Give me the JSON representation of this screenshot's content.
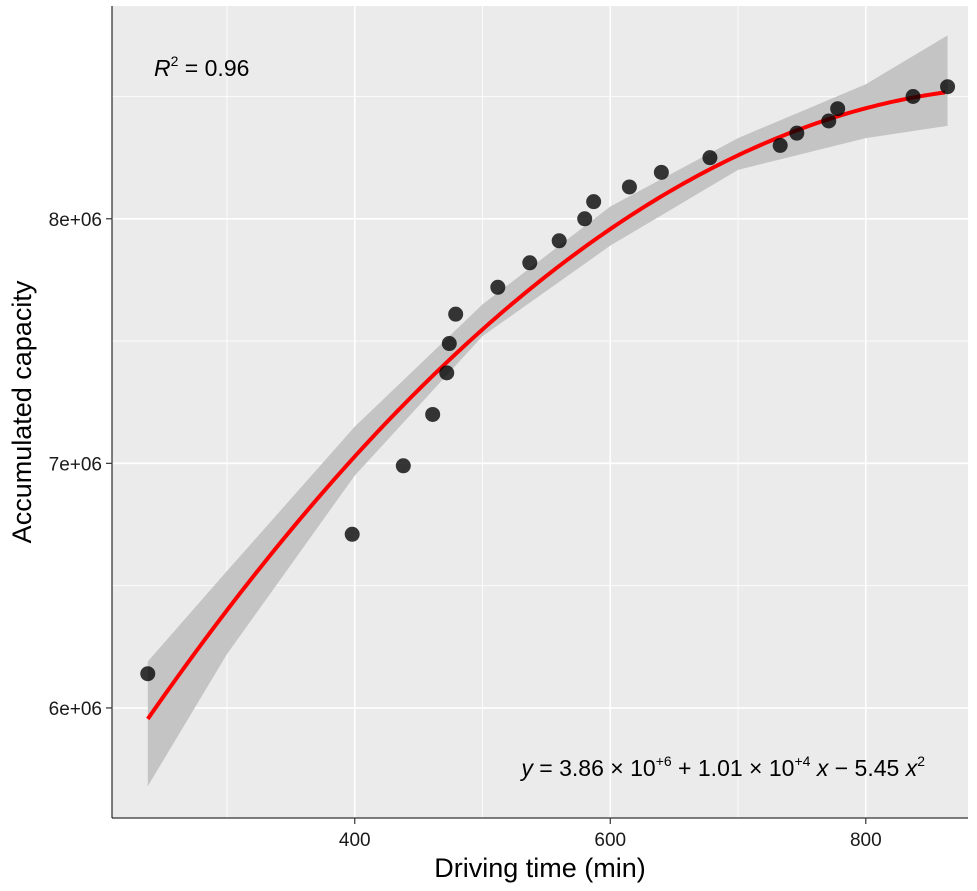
{
  "chart_data": {
    "type": "scatter",
    "xlabel": "Driving time (min)",
    "ylabel": "Accumulated capacity",
    "xlim": [
      210,
      880
    ],
    "ylim": [
      5550000,
      8870000
    ],
    "x_ticks": [
      400,
      600,
      800
    ],
    "x_tick_labels": [
      "400",
      "600",
      "800"
    ],
    "y_ticks": [
      6000000,
      7000000,
      8000000
    ],
    "y_tick_labels": [
      "6e+06",
      "7e+06",
      "8e+06"
    ],
    "grid": true,
    "points": [
      {
        "x": 238,
        "y": 6140000
      },
      {
        "x": 398,
        "y": 6710000
      },
      {
        "x": 438,
        "y": 6990000
      },
      {
        "x": 461,
        "y": 7200000
      },
      {
        "x": 472,
        "y": 7370000
      },
      {
        "x": 474,
        "y": 7490000
      },
      {
        "x": 479,
        "y": 7610000
      },
      {
        "x": 512,
        "y": 7720000
      },
      {
        "x": 537,
        "y": 7820000
      },
      {
        "x": 560,
        "y": 7910000
      },
      {
        "x": 580,
        "y": 8000000
      },
      {
        "x": 587,
        "y": 8070000
      },
      {
        "x": 615,
        "y": 8130000
      },
      {
        "x": 640,
        "y": 8190000
      },
      {
        "x": 678,
        "y": 8250000
      },
      {
        "x": 733,
        "y": 8300000
      },
      {
        "x": 746,
        "y": 8350000
      },
      {
        "x": 771,
        "y": 8400000
      },
      {
        "x": 778,
        "y": 8450000
      },
      {
        "x": 837,
        "y": 8500000
      },
      {
        "x": 864,
        "y": 8540000
      }
    ],
    "fit": {
      "color": "#ff0000",
      "intercept": 3860000,
      "linear": 10100,
      "quadratic": -5.45,
      "x_range": [
        238,
        864
      ],
      "ci_band": [
        {
          "x": 238,
          "lo": 5680000,
          "hi": 6190000
        },
        {
          "x": 300,
          "lo": 6220000,
          "hi": 6560000
        },
        {
          "x": 400,
          "lo": 6950000,
          "hi": 7150000
        },
        {
          "x": 500,
          "lo": 7520000,
          "hi": 7650000
        },
        {
          "x": 600,
          "lo": 7890000,
          "hi": 8050000
        },
        {
          "x": 700,
          "lo": 8200000,
          "hi": 8330000
        },
        {
          "x": 800,
          "lo": 8330000,
          "hi": 8550000
        },
        {
          "x": 864,
          "lo": 8380000,
          "hi": 8750000
        }
      ]
    },
    "annotations": {
      "r2_label": "R",
      "r2_sup": "2",
      "r2_value": " = 0.96",
      "eq_y": "y",
      "eq_eq": " = ",
      "eq_c0": "3.86",
      "eq_times1": " × ",
      "eq_ten1": "10",
      "eq_sup1": "+6",
      "eq_plus": " + ",
      "eq_c1": "1.01",
      "eq_times2": " × ",
      "eq_ten2": "10",
      "eq_sup2": "+4",
      "eq_x1": " x",
      "eq_minus": " − ",
      "eq_c2": "5.45",
      "eq_x2": " x",
      "eq_sup3": "2"
    }
  }
}
